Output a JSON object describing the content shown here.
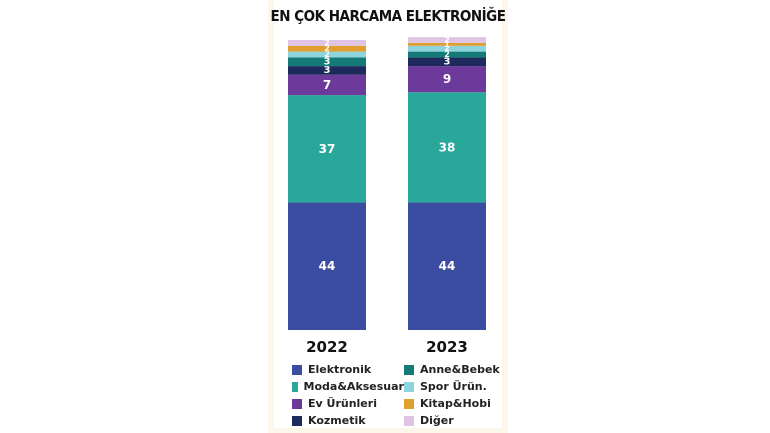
{
  "chart_data": {
    "type": "bar",
    "stacked": true,
    "title": "EN ÇOK HARCAMA ELEKTRONİĞE",
    "categories": [
      "2022",
      "2023"
    ],
    "series": [
      {
        "name": "Elektronik",
        "color": "#3a4da0",
        "values": [
          44,
          44
        ]
      },
      {
        "name": "Moda&Aksesuar",
        "color": "#2aa79b",
        "values": [
          37,
          38
        ]
      },
      {
        "name": "Ev Ürünleri",
        "color": "#6b3a9a",
        "values": [
          7,
          9
        ]
      },
      {
        "name": "Kozmetik",
        "color": "#1f2a5c",
        "values": [
          3,
          3
        ]
      },
      {
        "name": "Anne&Bebek",
        "color": "#137a78",
        "values": [
          3,
          2
        ]
      },
      {
        "name": "Spor Ürün.",
        "color": "#8fd3dc",
        "values": [
          2,
          2
        ]
      },
      {
        "name": "Kitap&Hobi",
        "color": "#e0a030",
        "values": [
          2,
          1
        ]
      },
      {
        "name": "Diğer",
        "color": "#e0c4e4",
        "values": [
          2,
          2
        ]
      }
    ],
    "legend_order": [
      0,
      4,
      1,
      5,
      2,
      6,
      3,
      7
    ],
    "legend": "bottom",
    "grid": false
  }
}
